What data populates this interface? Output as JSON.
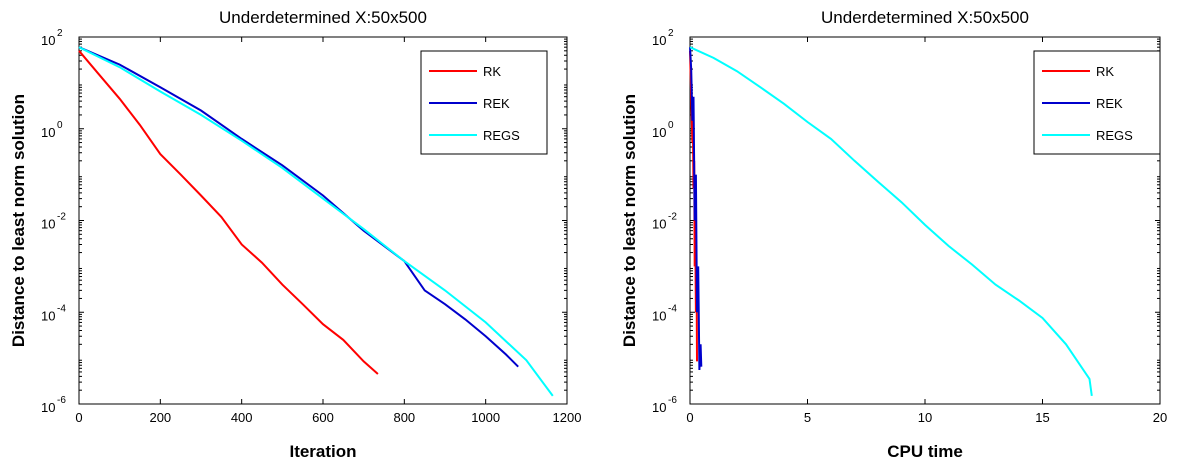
{
  "chart_data": [
    {
      "type": "line",
      "title": "Underdetermined X:50x500",
      "xlabel": "Iteration",
      "ylabel": "Distance to least norm solution",
      "xlim": [
        0,
        1200
      ],
      "ylim": [
        1e-06,
        100
      ],
      "yscale": "log",
      "grid": false,
      "legend": "top-right",
      "xticks": [
        "0",
        "200",
        "400",
        "600",
        "800",
        "1000",
        "1200"
      ],
      "yticks": [
        {
          "base": "10",
          "exp": "2"
        },
        {
          "base": "10",
          "exp": "0"
        },
        {
          "base": "10",
          "exp": "-2"
        },
        {
          "base": "10",
          "exp": "-4"
        },
        {
          "base": "10",
          "exp": "-6"
        }
      ],
      "series": [
        {
          "name": "RK",
          "color": "#ff0000",
          "x": [
            0,
            50,
            100,
            150,
            200,
            250,
            300,
            350,
            400,
            450,
            500,
            550,
            600,
            650,
            700,
            735
          ],
          "y": [
            50,
            15,
            4.5,
            1.2,
            0.28,
            0.1,
            0.035,
            0.012,
            0.003,
            0.0012,
            0.0004,
            0.00015,
            5.5e-05,
            2.5e-05,
            8.5e-06,
            4.5e-06
          ]
        },
        {
          "name": "REK",
          "color": "#0000cc",
          "x": [
            0,
            100,
            200,
            300,
            400,
            500,
            600,
            700,
            800,
            850,
            900,
            950,
            1000,
            1050,
            1080
          ],
          "y": [
            60,
            25,
            8,
            2.5,
            0.6,
            0.16,
            0.035,
            0.006,
            0.0013,
            0.0003,
            0.00015,
            7e-05,
            3e-05,
            1.2e-05,
            6.5e-06
          ]
        },
        {
          "name": "REGS",
          "color": "#00ffff",
          "x": [
            0,
            100,
            200,
            300,
            400,
            500,
            600,
            700,
            800,
            900,
            1000,
            1100,
            1165
          ],
          "y": [
            60,
            22,
            6.5,
            2,
            0.55,
            0.14,
            0.03,
            0.0065,
            0.0013,
            0.0003,
            6e-05,
            9e-06,
            1.5e-06
          ]
        }
      ]
    },
    {
      "type": "line",
      "title": "Underdetermined X:50x500",
      "xlabel": "CPU time",
      "ylabel": "Distance to least norm solution",
      "xlim": [
        0,
        20
      ],
      "ylim": [
        1e-06,
        100
      ],
      "yscale": "log",
      "grid": false,
      "legend": "top-right",
      "xticks": [
        "0",
        "5",
        "10",
        "15",
        "20"
      ],
      "yticks": [
        {
          "base": "10",
          "exp": "2"
        },
        {
          "base": "10",
          "exp": "0"
        },
        {
          "base": "10",
          "exp": "-2"
        },
        {
          "base": "10",
          "exp": "-4"
        },
        {
          "base": "10",
          "exp": "-6"
        }
      ],
      "series": [
        {
          "name": "RK",
          "color": "#ff0000",
          "x": [
            0,
            0.05,
            0.1,
            0.12,
            0.15,
            0.18,
            0.2,
            0.22,
            0.25,
            0.28,
            0.3
          ],
          "y": [
            50,
            5,
            0.5,
            2,
            0.05,
            0.2,
            0.001,
            0.01,
            0.0001,
            0.0005,
            8.5e-06
          ]
        },
        {
          "name": "REK",
          "color": "#0000cc",
          "x": [
            0,
            0.05,
            0.1,
            0.15,
            0.2,
            0.25,
            0.3,
            0.35,
            0.4,
            0.45,
            0.48
          ],
          "y": [
            60,
            20,
            1.5,
            5,
            0.01,
            0.1,
            0.0001,
            0.001,
            5.5e-06,
            2e-05,
            6.5e-06
          ]
        },
        {
          "name": "REGS",
          "color": "#00ffff",
          "x": [
            0,
            1,
            2,
            3,
            4,
            5,
            6,
            7,
            8,
            9,
            10,
            11,
            12,
            13,
            14,
            15,
            16,
            17,
            17.1
          ],
          "y": [
            60,
            35,
            18,
            8,
            3.5,
            1.4,
            0.6,
            0.2,
            0.07,
            0.025,
            0.008,
            0.0028,
            0.0011,
            0.0004,
            0.00018,
            7.5e-05,
            2e-05,
            3.5e-06,
            1.5e-06
          ]
        }
      ]
    }
  ]
}
